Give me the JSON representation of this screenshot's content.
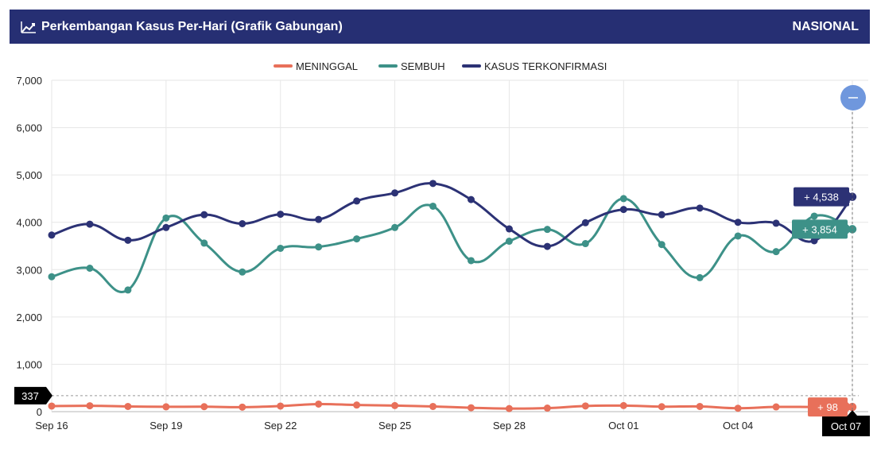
{
  "header": {
    "title": "Perkembangan Kasus Per-Hari (Grafik Gabungan)",
    "region": "NASIONAL",
    "icon": "line-chart-icon"
  },
  "colors": {
    "header_bg": "#262f73",
    "meninggal": "#e8705a",
    "sembuh": "#3d9188",
    "kasus": "#2c3275",
    "zoom_button": "#6f97dd"
  },
  "chart_data": {
    "type": "line",
    "x_ticks": [
      "Sep 16",
      "Sep 19",
      "Sep 22",
      "Sep 25",
      "Sep 28",
      "Oct 01",
      "Oct 04",
      "Oct 07"
    ],
    "x": [
      "Sep 16",
      "Sep 17",
      "Sep 18",
      "Sep 19",
      "Sep 20",
      "Sep 21",
      "Sep 22",
      "Sep 23",
      "Sep 24",
      "Sep 25",
      "Sep 26",
      "Sep 27",
      "Sep 28",
      "Sep 29",
      "Sep 30",
      "Oct 01",
      "Oct 02",
      "Oct 03",
      "Oct 04",
      "Oct 05",
      "Oct 06",
      "Oct 07"
    ],
    "ylim": [
      0,
      7000
    ],
    "y_ticks": [
      "0",
      "1,000",
      "2,000",
      "3,000",
      "4,000",
      "5,000",
      "6,000",
      "7,000"
    ],
    "legend_position": "top-center",
    "grid": true,
    "series": [
      {
        "name": "MENINGGAL",
        "color": "#e8705a",
        "values": [
          118,
          124,
          110,
          102,
          105,
          95,
          118,
          160,
          140,
          128,
          110,
          82,
          65,
          75,
          120,
          128,
          105,
          110,
          72,
          100,
          98,
          98
        ],
        "tooltip": "+ 98"
      },
      {
        "name": "SEMBUH",
        "color": "#3d9188",
        "values": [
          2850,
          3030,
          2570,
          4090,
          3560,
          2950,
          3450,
          3480,
          3650,
          3890,
          4340,
          3190,
          3600,
          3850,
          3550,
          4500,
          3530,
          2830,
          3710,
          3380,
          4130,
          3854
        ],
        "tooltip": "+ 3,854"
      },
      {
        "name": "KASUS TERKONFIRMASI",
        "color": "#2c3275",
        "values": [
          3730,
          3960,
          3620,
          3890,
          4160,
          3970,
          4170,
          4060,
          4450,
          4620,
          4820,
          4480,
          3860,
          3490,
          3990,
          4270,
          4160,
          4300,
          4000,
          3980,
          3610,
          4538
        ],
        "tooltip": "+ 4,538"
      }
    ],
    "crosshair_value": "337",
    "crosshair_x_label": "Oct 07"
  }
}
